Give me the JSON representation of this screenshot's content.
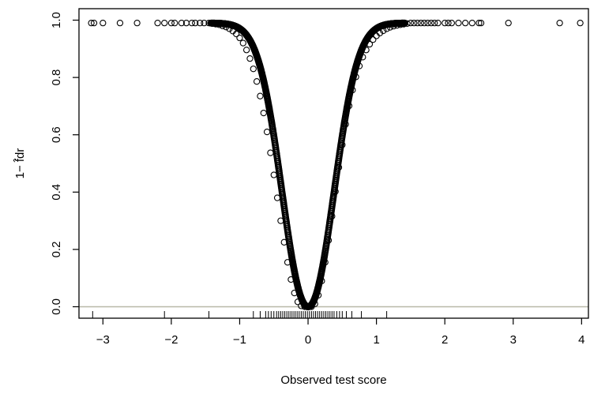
{
  "chart_data": {
    "type": "scatter",
    "title": "",
    "xlabel": "Observed test score",
    "ylabel": "1− f̂dr",
    "xlim": [
      -3.35,
      4.1
    ],
    "ylim": [
      -0.04,
      1.04
    ],
    "x_ticks": [
      -3,
      -2,
      -1,
      0,
      1,
      2,
      3,
      4
    ],
    "x_tick_labels": [
      "−3",
      "−2",
      "−1",
      "0",
      "1",
      "2",
      "3",
      "4"
    ],
    "y_ticks": [
      0.0,
      0.2,
      0.4,
      0.6,
      0.8,
      1.0
    ],
    "y_tick_labels": [
      "0.0",
      "0.2",
      "0.4",
      "0.6",
      "0.8",
      "1.0"
    ],
    "grid": false,
    "reference_line": {
      "y": 0,
      "color": "#b8b8a8"
    },
    "series": [
      {
        "x": [
          -3.17,
          -3.13,
          -3.0,
          -2.75,
          -2.5,
          -2.2,
          -2.1,
          -2.0,
          -1.95,
          -1.85,
          -1.78,
          -1.7,
          -1.65,
          -1.58,
          -1.52,
          -1.45,
          -1.4,
          -1.35,
          -1.3,
          -1.25,
          -1.2,
          -1.15,
          -1.1,
          -1.05,
          -1.0,
          -0.95,
          -0.9,
          -0.85,
          -0.8,
          -0.75,
          -0.7,
          -0.65,
          -0.6,
          -0.55,
          -0.5,
          -0.45,
          -0.4,
          -0.35,
          -0.3,
          -0.25,
          -0.2,
          -0.15,
          -0.1,
          -0.05,
          0.0,
          0.05,
          0.1,
          0.15,
          0.2,
          0.25,
          0.3,
          0.35,
          0.4,
          0.45,
          0.5,
          0.55,
          0.6,
          0.65,
          0.7,
          0.75,
          0.8,
          0.85,
          0.9,
          0.95,
          1.0,
          1.05,
          1.1,
          1.15,
          1.2,
          1.25,
          1.3,
          1.35,
          1.4,
          1.45,
          1.5,
          1.55,
          1.6,
          1.65,
          1.7,
          1.75,
          1.8,
          1.85,
          1.9,
          2.0,
          2.05,
          2.1,
          2.2,
          2.3,
          2.4,
          2.5,
          2.53,
          2.93,
          3.68,
          3.98
        ],
        "y": [
          0.99,
          0.99,
          0.99,
          0.99,
          0.99,
          0.99,
          0.99,
          0.99,
          0.99,
          0.99,
          0.99,
          0.99,
          0.99,
          0.99,
          0.99,
          0.99,
          0.988,
          0.986,
          0.984,
          0.98,
          0.976,
          0.97,
          0.962,
          0.952,
          0.938,
          0.92,
          0.896,
          0.866,
          0.83,
          0.786,
          0.735,
          0.676,
          0.61,
          0.537,
          0.46,
          0.38,
          0.3,
          0.225,
          0.155,
          0.095,
          0.048,
          0.017,
          0.003,
          0.0,
          0.0,
          0.0,
          0.01,
          0.04,
          0.09,
          0.155,
          0.232,
          0.316,
          0.402,
          0.486,
          0.565,
          0.637,
          0.701,
          0.756,
          0.802,
          0.84,
          0.871,
          0.896,
          0.916,
          0.932,
          0.945,
          0.955,
          0.963,
          0.97,
          0.975,
          0.979,
          0.982,
          0.984,
          0.986,
          0.988,
          0.99,
          0.99,
          0.99,
          0.99,
          0.99,
          0.99,
          0.99,
          0.99,
          0.99,
          0.99,
          0.99,
          0.99,
          0.99,
          0.99,
          0.99,
          0.99,
          0.99,
          0.99,
          0.99,
          0.99
        ],
        "marker": "open-circle"
      }
    ],
    "rug": {
      "x": [
        -3.15,
        -2.1,
        -1.45,
        -0.8,
        -0.7,
        -0.62,
        -0.58,
        -0.54,
        -0.5,
        -0.46,
        -0.43,
        -0.4,
        -0.37,
        -0.34,
        -0.31,
        -0.28,
        -0.25,
        -0.22,
        -0.19,
        -0.16,
        -0.13,
        -0.1,
        -0.07,
        -0.04,
        -0.01,
        0.02,
        0.05,
        0.08,
        0.11,
        0.14,
        0.17,
        0.2,
        0.23,
        0.26,
        0.29,
        0.32,
        0.35,
        0.38,
        0.42,
        0.46,
        0.5,
        0.56,
        0.64,
        0.78,
        1.15
      ]
    }
  }
}
